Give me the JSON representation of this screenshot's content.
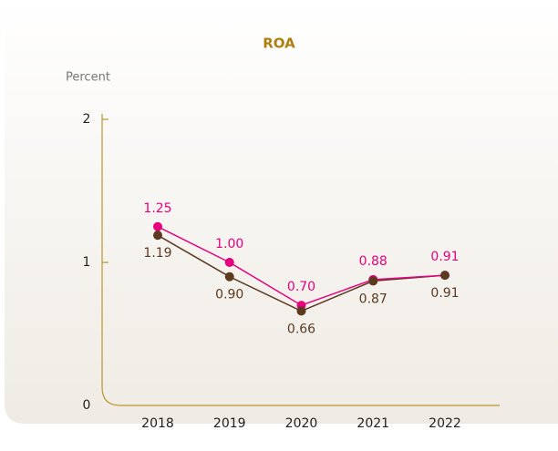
{
  "chart_data": {
    "type": "line",
    "title": "ROA",
    "y_label": "Percent",
    "categories": [
      "2018",
      "2019",
      "2020",
      "2021",
      "2022"
    ],
    "series": [
      {
        "color": "#e6007e",
        "values": [
          1.25,
          1.0,
          0.7,
          0.88,
          0.91
        ],
        "value_labels": [
          "1.25",
          "1.00",
          "0.70",
          "0.88",
          "0.91"
        ],
        "label_position": "above"
      },
      {
        "color": "#5b3a1f",
        "values": [
          1.19,
          0.9,
          0.66,
          0.87,
          0.91
        ],
        "value_labels": [
          "1.19",
          "0.90",
          "0.66",
          "0.87",
          "0.91"
        ],
        "label_position": "below"
      }
    ],
    "ylim": [
      0,
      2
    ],
    "yticks": [
      0,
      1,
      2
    ],
    "axis_color": "#b8962e",
    "title_color": "#b07d10"
  }
}
